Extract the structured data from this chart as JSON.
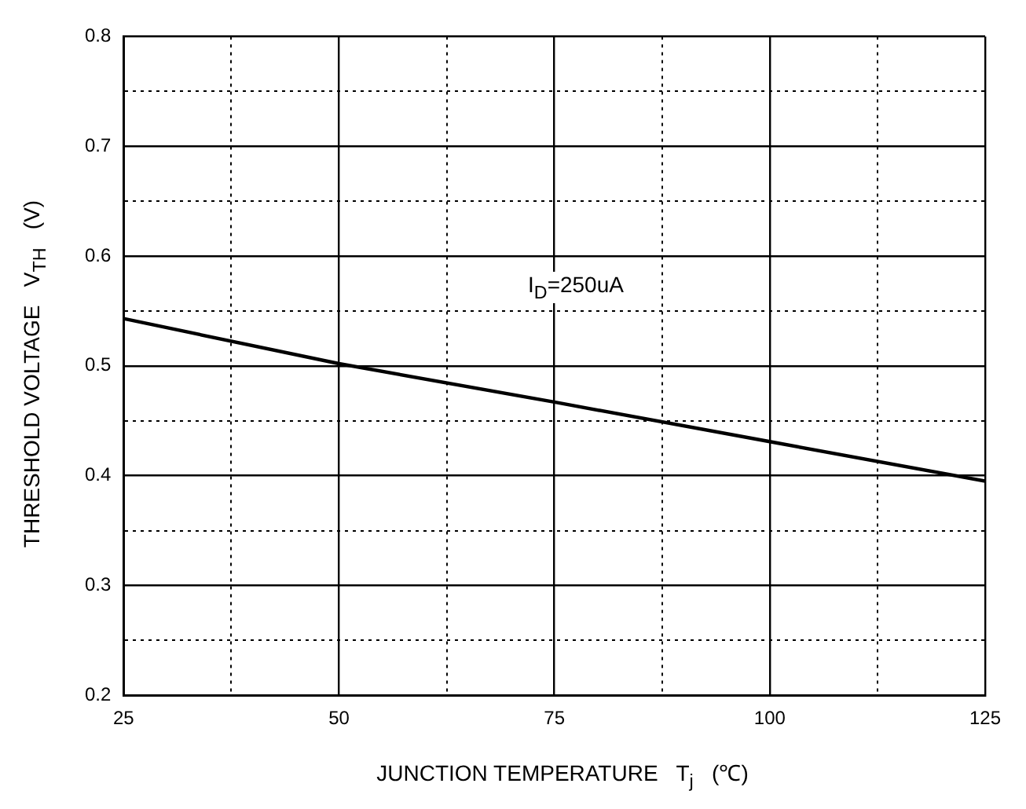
{
  "chart_data": {
    "type": "line",
    "xlabel": "JUNCTION TEMPERATURE   T$_{j}$   (℃)",
    "ylabel": "THRESHOLD VOLTAGE   V$_{TH}$   (V)",
    "annotations": [
      "I$_{D}$=250uA"
    ],
    "x": [
      25,
      50,
      75,
      100,
      125
    ],
    "series": [
      {
        "color": "#000000",
        "values": [
          0.543,
          0.502,
          0.467,
          0.431,
          0.395
        ]
      }
    ],
    "xlim": [
      25,
      125
    ],
    "xticks": [
      25,
      {
        "value": 37.5,
        "label": null
      },
      50,
      {
        "value": 62.5,
        "label": null
      },
      75,
      {
        "value": 87.5,
        "label": null
      },
      100,
      {
        "value": 112.5,
        "label": null
      },
      125
    ],
    "ylim": [
      0.2,
      0.8
    ],
    "yticks": [
      0.2,
      {
        "value": 0.25,
        "label": null
      },
      0.3,
      {
        "value": 0.35,
        "label": null
      },
      0.4,
      {
        "value": 0.45,
        "label": null
      },
      0.5,
      {
        "value": 0.55,
        "label": null
      },
      0.6,
      {
        "value": 0.65,
        "label": null
      },
      0.7,
      {
        "value": 0.75,
        "label": null
      },
      0.8
    ],
    "grid": true,
    "legend": false,
    "marker": "none",
    "line_style": "solid"
  }
}
